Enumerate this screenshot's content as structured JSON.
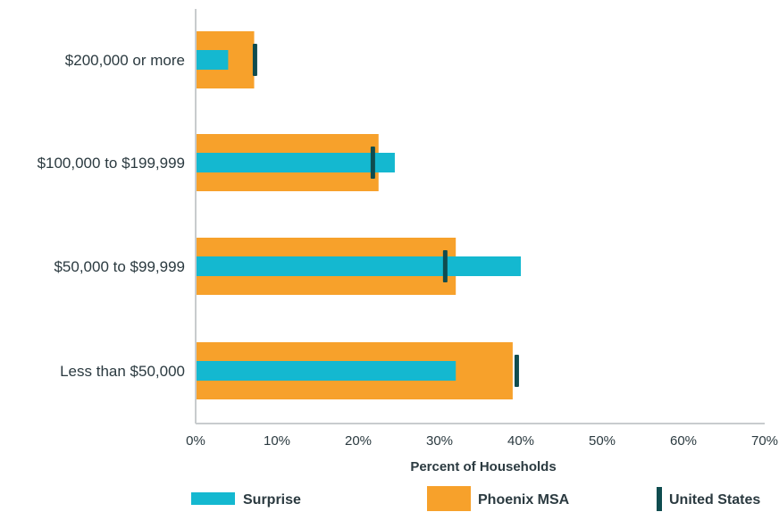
{
  "chart_data": {
    "type": "bar",
    "orientation": "horizontal",
    "title": "",
    "xlabel": "Percent of Households",
    "ylabel": "",
    "xlim": [
      0,
      70
    ],
    "x_ticks": [
      0,
      10,
      20,
      30,
      40,
      50,
      60,
      70
    ],
    "x_tick_labels": [
      "0%",
      "10%",
      "20%",
      "30%",
      "40%",
      "50%",
      "60%",
      "70%"
    ],
    "grid": false,
    "legend_position": "bottom",
    "categories": [
      "$200,000 or more",
      "$100,000 to $199,999",
      "$50,000 to $99,999",
      "Less than $50,000"
    ],
    "series": [
      {
        "name": "Phoenix MSA",
        "mark": "wide-bar",
        "color": "#f7a12b",
        "values": [
          7.2,
          22.5,
          32.0,
          39.0
        ]
      },
      {
        "name": "Surprise",
        "mark": "narrow-bar",
        "color": "#14b8d0",
        "values": [
          4.0,
          24.5,
          40.0,
          32.0
        ]
      },
      {
        "name": "United States",
        "mark": "line-marker",
        "color": "#0f4c4f",
        "values": [
          7.3,
          21.8,
          30.7,
          39.5
        ]
      }
    ]
  }
}
